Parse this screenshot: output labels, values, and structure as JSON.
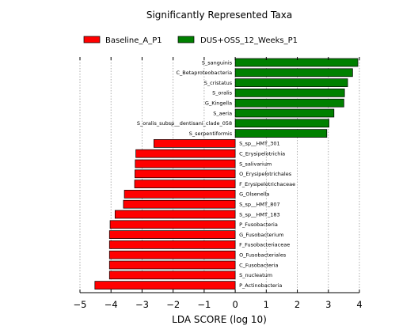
{
  "chart_data": {
    "type": "bar",
    "orientation": "horizontal",
    "title": "Significantly Represented Taxa",
    "xlabel": "LDA SCORE (log 10)",
    "ylabel": "",
    "xlim": [
      -5,
      4
    ],
    "xticks": [
      -5,
      -4,
      -3,
      -2,
      -1,
      0,
      1,
      2,
      3,
      4
    ],
    "xtick_labels": [
      "−5",
      "−4",
      "−3",
      "−2",
      "−1",
      "0",
      "1",
      "2",
      "3",
      "4"
    ],
    "grid": "vertical dotted",
    "legend_position": "top",
    "series": [
      {
        "name": "Baseline_A_P1",
        "color": "#ff0000"
      },
      {
        "name": "DUS+OSS_12_Weeks_P1",
        "color": "#008000"
      }
    ],
    "bars": [
      {
        "label": "S_sanguinis",
        "value": 3.95,
        "group": "DUS+OSS_12_Weeks_P1"
      },
      {
        "label": "C_Betaproteobacteria",
        "value": 3.78,
        "group": "DUS+OSS_12_Weeks_P1"
      },
      {
        "label": "S_cristatus",
        "value": 3.62,
        "group": "DUS+OSS_12_Weeks_P1"
      },
      {
        "label": "S_oralis",
        "value": 3.52,
        "group": "DUS+OSS_12_Weeks_P1"
      },
      {
        "label": "G_Kingella",
        "value": 3.5,
        "group": "DUS+OSS_12_Weeks_P1"
      },
      {
        "label": "S_aeria",
        "value": 3.18,
        "group": "DUS+OSS_12_Weeks_P1"
      },
      {
        "label": "S_oralis_subsp__dentisani_clade_058",
        "value": 3.02,
        "group": "DUS+OSS_12_Weeks_P1"
      },
      {
        "label": "S_serpentiformis",
        "value": 2.95,
        "group": "DUS+OSS_12_Weeks_P1"
      },
      {
        "label": "S_sp__HMT_301",
        "value": -2.62,
        "group": "Baseline_A_P1"
      },
      {
        "label": "C_Erysipelotrichia",
        "value": -3.2,
        "group": "Baseline_A_P1"
      },
      {
        "label": "S_salivarium",
        "value": -3.22,
        "group": "Baseline_A_P1"
      },
      {
        "label": "O_Erysipelotrichales",
        "value": -3.23,
        "group": "Baseline_A_P1"
      },
      {
        "label": "F_Erysipelotrichaceae",
        "value": -3.24,
        "group": "Baseline_A_P1"
      },
      {
        "label": "G_Olsenella",
        "value": -3.57,
        "group": "Baseline_A_P1"
      },
      {
        "label": "S_sp__HMT_807",
        "value": -3.6,
        "group": "Baseline_A_P1"
      },
      {
        "label": "S_sp__HMT_183",
        "value": -3.87,
        "group": "Baseline_A_P1"
      },
      {
        "label": "P_Fusobacteria",
        "value": -4.03,
        "group": "Baseline_A_P1"
      },
      {
        "label": "G_Fusobacterium",
        "value": -4.05,
        "group": "Baseline_A_P1"
      },
      {
        "label": "F_Fusobacteriaceae",
        "value": -4.05,
        "group": "Baseline_A_P1"
      },
      {
        "label": "O_Fusobacteriales",
        "value": -4.05,
        "group": "Baseline_A_P1"
      },
      {
        "label": "C_Fusobacteria",
        "value": -4.05,
        "group": "Baseline_A_P1"
      },
      {
        "label": "S_nucleatum",
        "value": -4.05,
        "group": "Baseline_A_P1"
      },
      {
        "label": "P_Actinobacteria",
        "value": -4.52,
        "group": "Baseline_A_P1"
      }
    ]
  }
}
